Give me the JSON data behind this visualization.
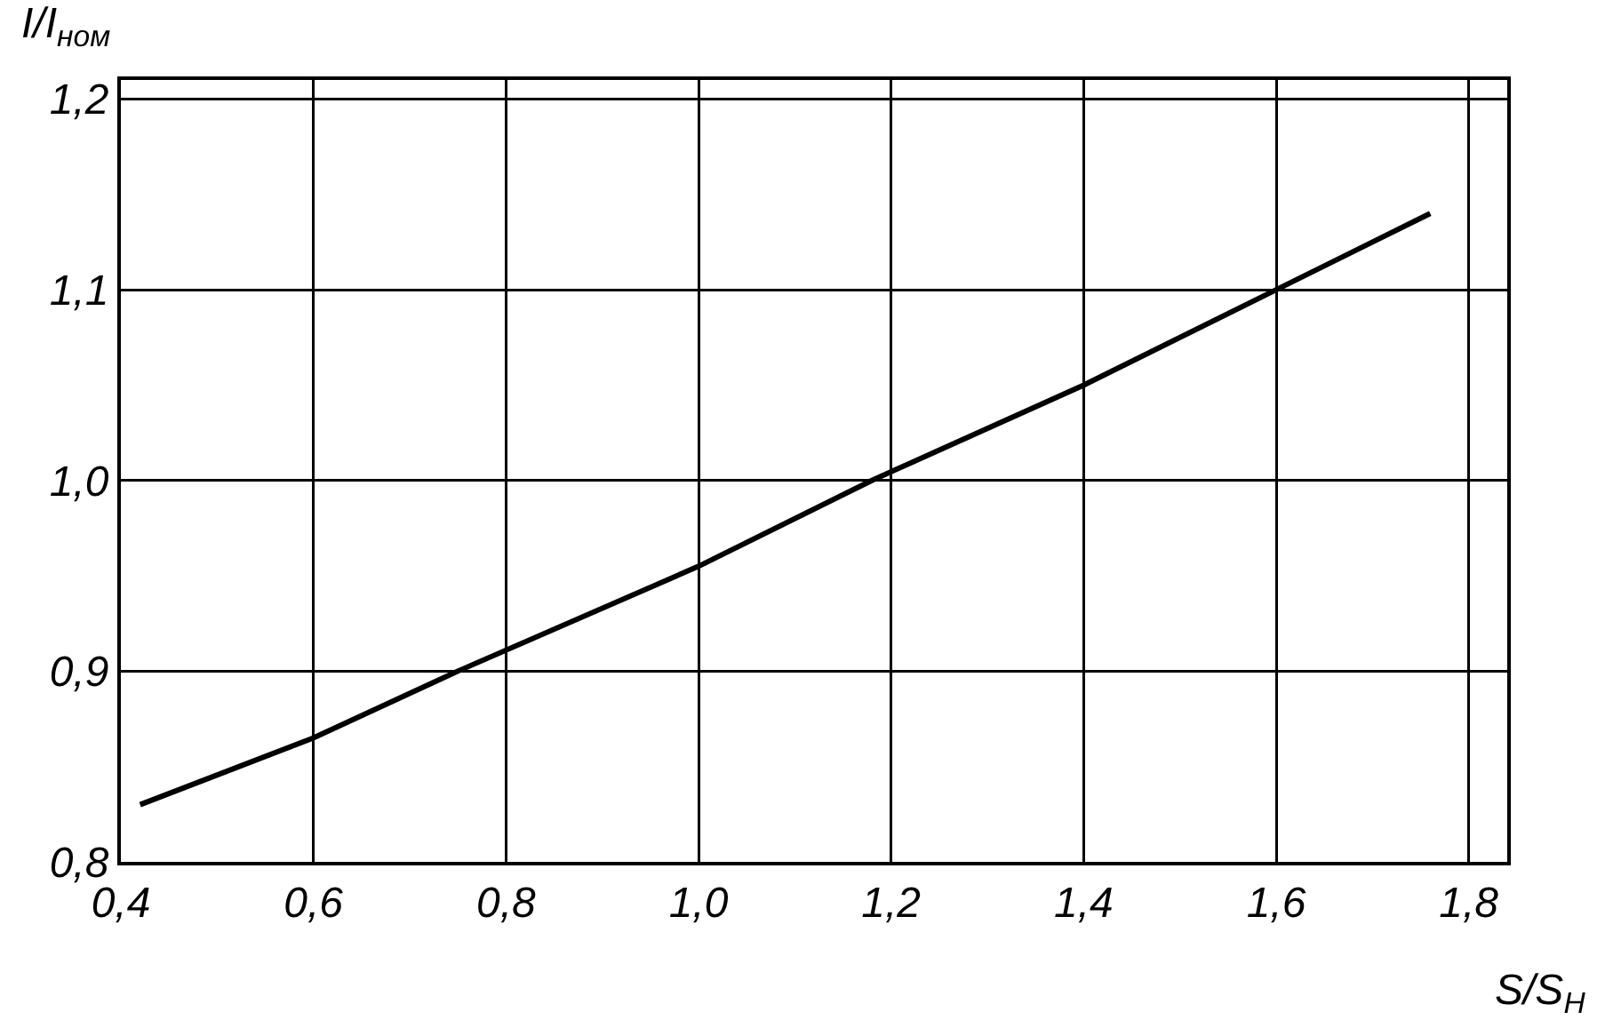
{
  "chart_data": {
    "type": "line",
    "xlabel": "S/S$_{Н}$",
    "ylabel": "I/I$_{ном}$",
    "x": [
      0.42,
      0.6,
      0.75,
      1.0,
      1.18,
      1.4,
      1.6,
      1.76
    ],
    "series": [
      {
        "color": "#000000",
        "values": [
          0.83,
          0.865,
          0.9,
          0.955,
          1.0,
          1.05,
          1.1,
          1.14
        ]
      }
    ],
    "xlim": [
      0.4,
      1.84
    ],
    "ylim": [
      0.8,
      1.21
    ],
    "xticks": [
      {
        "value": 0.4,
        "label": "0,4"
      },
      {
        "value": 0.6,
        "label": "0,6"
      },
      {
        "value": 0.8,
        "label": "0,8"
      },
      {
        "value": 1.0,
        "label": "1,0"
      },
      {
        "value": 1.2,
        "label": "1,2"
      },
      {
        "value": 1.4,
        "label": "1,4"
      },
      {
        "value": 1.6,
        "label": "1,6"
      },
      {
        "value": 1.8,
        "label": "1,8"
      }
    ],
    "yticks": [
      {
        "value": 0.8,
        "label": "0,8"
      },
      {
        "value": 0.9,
        "label": "0,9"
      },
      {
        "value": 1.0,
        "label": "1,0"
      },
      {
        "value": 1.1,
        "label": "1,1"
      },
      {
        "value": 1.2,
        "label": "1,2"
      }
    ],
    "grid": true,
    "marker": "none",
    "line_style": "solid"
  }
}
